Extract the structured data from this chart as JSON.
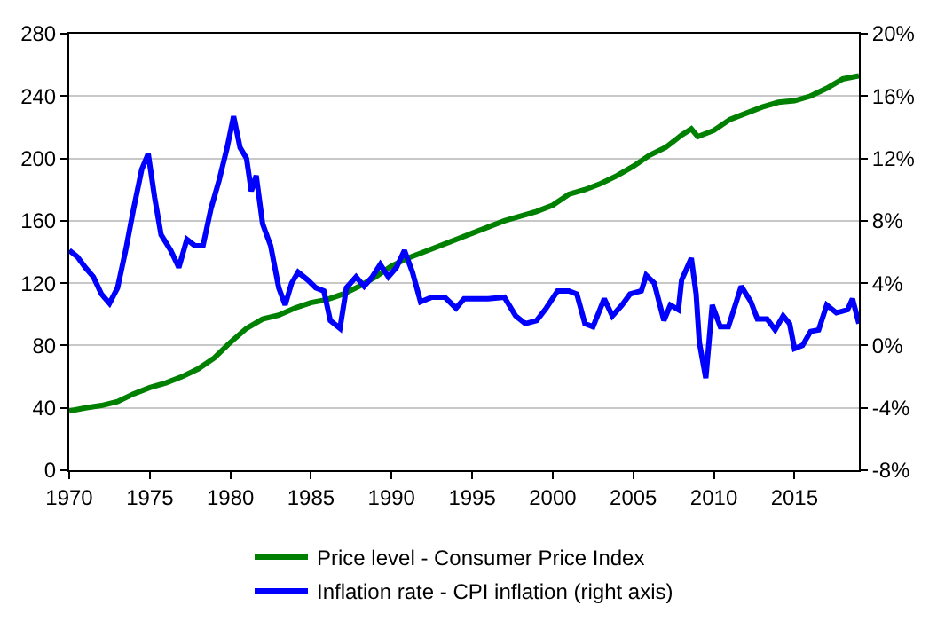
{
  "chart_data": {
    "type": "line",
    "xlim": [
      1970,
      2019
    ],
    "xticks": [
      1970,
      1975,
      1980,
      1985,
      1990,
      1995,
      2000,
      2005,
      2010,
      2015
    ],
    "ylim": [
      0,
      280
    ],
    "yticks": [
      0,
      40,
      80,
      120,
      160,
      200,
      240,
      280
    ],
    "y2lim": [
      -8,
      20
    ],
    "y2ticks": [
      {
        "value": -8,
        "label": "-8%"
      },
      {
        "value": -4,
        "label": "-4%"
      },
      {
        "value": 0,
        "label": "0%"
      },
      {
        "value": 4,
        "label": "4%"
      },
      {
        "value": 8,
        "label": "8%"
      },
      {
        "value": 12,
        "label": "12%"
      },
      {
        "value": 16,
        "label": "16%"
      },
      {
        "value": 20,
        "label": "20%"
      }
    ],
    "grid": "y",
    "legend": "bottom",
    "series": [
      {
        "name": "Price level - Consumer Price Index",
        "color": "#008000",
        "x": [
          1970,
          1971,
          1972,
          1973,
          1974,
          1975,
          1976,
          1977,
          1978,
          1979,
          1980,
          1981,
          1982,
          1983,
          1984,
          1985,
          1986,
          1987,
          1988,
          1989,
          1990,
          1991,
          1992,
          1993,
          1994,
          1995,
          1996,
          1997,
          1998,
          1999,
          2000,
          2001,
          2002,
          2003,
          2004,
          2005,
          2006,
          2007,
          2008,
          2008.6,
          2009,
          2010,
          2011,
          2012,
          2013,
          2014,
          2015,
          2016,
          2017,
          2018,
          2019
        ],
        "values": [
          38,
          40,
          41.5,
          44,
          49,
          53,
          56,
          60,
          65,
          72,
          82,
          91,
          97,
          99.5,
          104,
          107.5,
          109.5,
          113,
          118,
          124,
          131,
          136,
          140,
          144,
          148,
          152,
          156,
          160,
          163,
          166,
          170,
          177,
          180,
          184,
          189,
          195,
          202,
          207,
          215,
          219,
          214,
          218,
          225,
          229,
          233,
          236,
          237,
          240,
          245,
          251,
          253
        ]
      },
      {
        "name": "Inflation rate - CPI inflation (right axis)",
        "color": "#0000ff",
        "axis": "y2",
        "x": [
          1970,
          1970.5,
          1971,
          1971.5,
          1972,
          1972.5,
          1973,
          1973.5,
          1974,
          1974.5,
          1974.9,
          1975.3,
          1975.7,
          1976.3,
          1976.8,
          1977.3,
          1977.8,
          1978.3,
          1978.8,
          1979.3,
          1979.8,
          1980.2,
          1980.6,
          1981,
          1981.3,
          1981.6,
          1982,
          1982.5,
          1983,
          1983.4,
          1983.8,
          1984.2,
          1984.8,
          1985.3,
          1985.8,
          1986.2,
          1986.8,
          1987.2,
          1987.8,
          1988.3,
          1988.8,
          1989.3,
          1989.8,
          1990.3,
          1990.8,
          1991.3,
          1991.8,
          1992.5,
          1993.3,
          1994,
          1994.5,
          1995,
          1996,
          1997,
          1997.7,
          1998.3,
          1999,
          1999.6,
          2000.3,
          2001,
          2001.5,
          2002,
          2002.5,
          2003.2,
          2003.7,
          2004.3,
          2004.8,
          2005.5,
          2005.8,
          2006.3,
          2006.9,
          2007.3,
          2007.8,
          2008,
          2008.6,
          2008.9,
          2009.1,
          2009.5,
          2009.9,
          2010.4,
          2010.9,
          2011.7,
          2012.3,
          2012.7,
          2013.3,
          2013.8,
          2014.3,
          2014.7,
          2015,
          2015.5,
          2016,
          2016.5,
          2017,
          2017.6,
          2018.3,
          2018.6,
          2019
        ],
        "values": [
          6.1,
          5.7,
          5.0,
          4.4,
          3.3,
          2.7,
          3.7,
          6.1,
          8.8,
          11.3,
          12.3,
          9.5,
          7.1,
          6.1,
          5.0,
          6.8,
          6.4,
          6.4,
          8.8,
          10.6,
          12.7,
          14.7,
          12.7,
          12.0,
          9.9,
          10.9,
          7.8,
          6.4,
          3.7,
          2.6,
          4.0,
          4.7,
          4.2,
          3.7,
          3.5,
          1.6,
          1.1,
          3.7,
          4.4,
          3.8,
          4.4,
          5.2,
          4.4,
          5.0,
          6.1,
          4.7,
          2.8,
          3.1,
          3.1,
          2.4,
          3.0,
          3.0,
          3.0,
          3.1,
          1.9,
          1.4,
          1.6,
          2.4,
          3.5,
          3.5,
          3.3,
          1.4,
          1.2,
          3.0,
          1.9,
          2.6,
          3.3,
          3.5,
          4.5,
          4.0,
          1.6,
          2.6,
          2.3,
          4.2,
          5.6,
          3.3,
          0.2,
          -2.1,
          2.6,
          1.2,
          1.2,
          3.8,
          2.8,
          1.7,
          1.7,
          1.0,
          1.9,
          1.4,
          -0.2,
          0.0,
          0.9,
          1.0,
          2.6,
          2.1,
          2.3,
          3.0,
          1.4
        ]
      }
    ]
  }
}
